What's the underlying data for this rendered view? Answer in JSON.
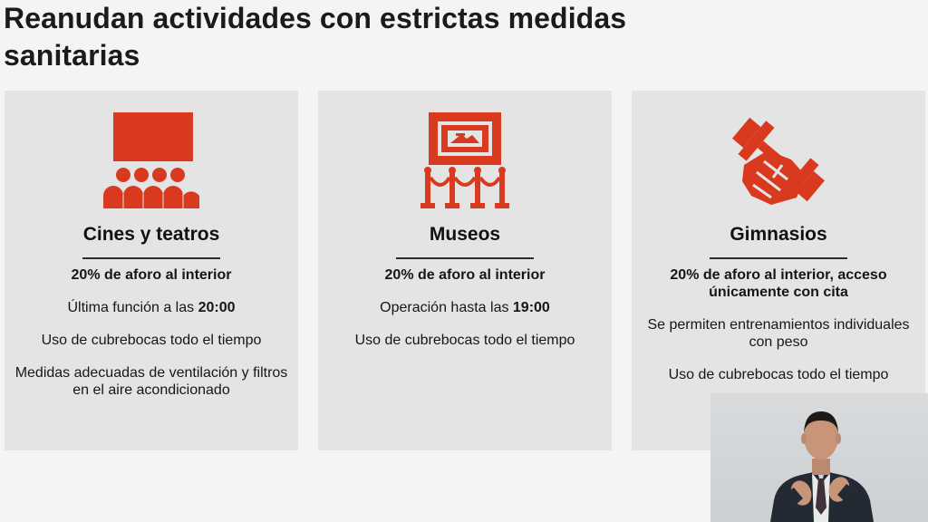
{
  "slide": {
    "title": "Reanudan actividades con estrictas medidas sanitarias",
    "title_line1": "Reanudan actividades con estrictas medidas",
    "title_line2": "sanitarias"
  },
  "colors": {
    "accent_red": "#d93a1f",
    "card_background": "#e4e4e4",
    "page_background": "#f4f4f4"
  },
  "cards": [
    {
      "icon": "cinema-audience-icon",
      "heading": "Cines y teatros",
      "items": [
        {
          "text": "20% de aforo al interior"
        },
        {
          "prefix": "Última función a las ",
          "emphasis": "20:00"
        },
        {
          "text": "Uso de cubrebocas todo el tiempo"
        },
        {
          "text": "Medidas adecuadas de ventilación y filtros en el aire acondicionado"
        }
      ]
    },
    {
      "icon": "museum-exhibit-icon",
      "heading": "Museos",
      "items": [
        {
          "text": "20% de aforo al interior"
        },
        {
          "prefix": "Operación hasta las ",
          "emphasis": "19:00"
        },
        {
          "text": "Uso de cubrebocas todo el tiempo"
        }
      ]
    },
    {
      "icon": "dumbbell-fist-icon",
      "heading": "Gimnasios",
      "items": [
        {
          "text": "20% de aforo al interior, acceso únicamente con cita"
        },
        {
          "text": "Se permiten entrenamientos individuales con peso"
        },
        {
          "text": "Uso de cubrebocas todo el tiempo"
        }
      ]
    }
  ],
  "video_overlay": {
    "icon": "sign-language-interpreter"
  }
}
